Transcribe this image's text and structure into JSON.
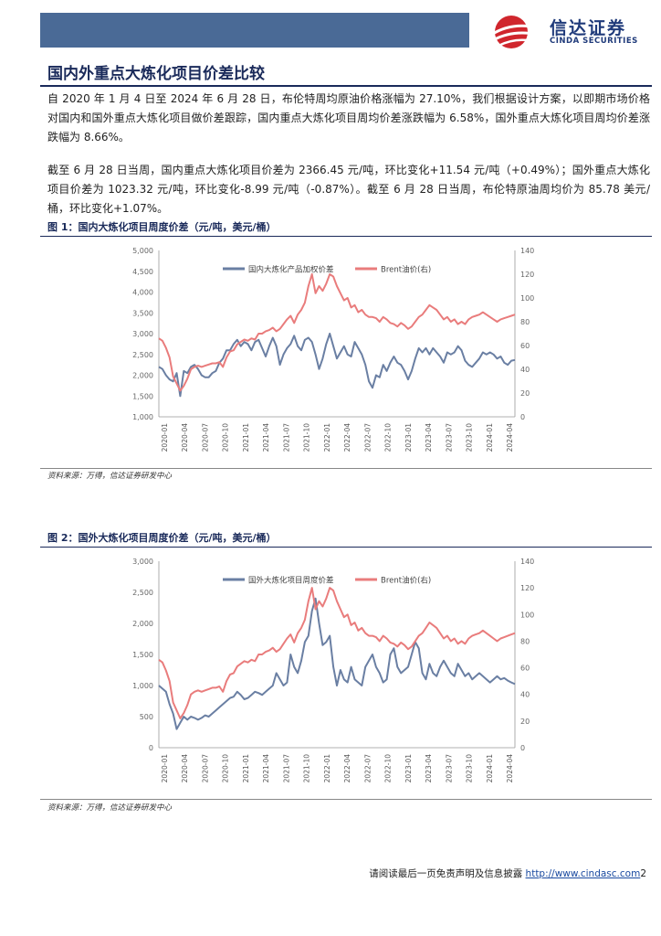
{
  "header": {
    "logo_cn": "信达证券",
    "logo_en": "CINDA SECURITIES",
    "band_color": "#4a6a96",
    "brand_color": "#1f3a7a",
    "logo_red": "#d0262d"
  },
  "section_title": "国内外重点大炼化项目价差比较",
  "paragraphs": [
    "自 2020 年 1 月 4 日至 2024 年 6 月 28 日，布伦特周均原油价格涨幅为 27.10%，我们根据设计方案，以即期市场价格对国内和国外重点大炼化项目做价差跟踪，国内重点大炼化项目周均价差涨跌幅为 6.58%，国外重点大炼化项目周均价差涨跌幅为 8.66%。",
    "截至 6 月 28 日当周，国内重点大炼化项目价差为 2366.45 元/吨，环比变化+11.54 元/吨（+0.49%）；国外重点大炼化项目价差为 1023.32 元/吨，环比变化-8.99 元/吨（-0.87%）。截至 6 月 28 日当周，布伦特原油周均价为 85.78 美元/桶，环比变化+1.07%。"
  ],
  "figures": [
    {
      "title": "图 1：国内大炼化项目周度价差（元/吨，美元/桶）",
      "source": "资料来源：万得，信达证券研发中心"
    },
    {
      "title": "图 2：国外大炼化项目周度价差（元/吨，美元/桶）",
      "source": "资料来源：万得，信达证券研发中心"
    }
  ],
  "footer": {
    "text": "请阅读最后一页免责声明及信息披露",
    "link": "http://www.cindasc.com",
    "page": "2"
  },
  "chart_data": [
    {
      "type": "line",
      "title": "",
      "legend_position": "top",
      "y_left": {
        "min": 1000,
        "max": 5000,
        "ticks": [
          "1,000",
          "1,500",
          "2,000",
          "2,500",
          "3,000",
          "3,500",
          "4,000",
          "4,500",
          "5,000"
        ]
      },
      "y_right": {
        "min": 0,
        "max": 140,
        "ticks": [
          "0",
          "20",
          "40",
          "60",
          "80",
          "100",
          "120",
          "140"
        ]
      },
      "x_tick_labels": [
        "2020-01",
        "2020-04",
        "2020-07",
        "2020-10",
        "2021-01",
        "2021-04",
        "2021-07",
        "2021-10",
        "2022-01",
        "2022-04",
        "2022-07",
        "2022-10",
        "2023-01",
        "2023-04",
        "2023-07",
        "2023-10",
        "2024-01",
        "2024-04"
      ],
      "series": [
        {
          "name": "国内大炼化产品加权价差",
          "axis": "left",
          "color": "#6a7fa3",
          "values": [
            2200,
            2150,
            2000,
            1900,
            1850,
            2050,
            1500,
            2100,
            2050,
            2200,
            2250,
            2150,
            2000,
            1950,
            1950,
            2050,
            2100,
            2300,
            2400,
            2600,
            2600,
            2750,
            2850,
            2700,
            2800,
            2750,
            2600,
            2800,
            2850,
            2650,
            2450,
            2700,
            2900,
            2700,
            2250,
            2500,
            2650,
            2750,
            2950,
            2700,
            2600,
            2850,
            2900,
            2800,
            2500,
            2150,
            2400,
            2750,
            3000,
            2700,
            2400,
            2550,
            2700,
            2500,
            2450,
            2800,
            2650,
            2500,
            2250,
            1850,
            1700,
            2000,
            1950,
            2250,
            2100,
            2300,
            2450,
            2300,
            2250,
            2100,
            1900,
            2100,
            2400,
            2650,
            2550,
            2650,
            2500,
            2650,
            2550,
            2450,
            2300,
            2550,
            2500,
            2550,
            2700,
            2600,
            2350,
            2250,
            2200,
            2300,
            2400,
            2550,
            2500,
            2550,
            2500,
            2400,
            2450,
            2300,
            2250,
            2350,
            2366
          ]
        },
        {
          "name": "Brent油价(右)",
          "axis": "right",
          "color": "#e97c7c",
          "values": [
            66,
            64,
            58,
            50,
            34,
            28,
            22,
            26,
            32,
            40,
            42,
            43,
            42,
            43,
            44,
            45,
            45,
            46,
            42,
            50,
            55,
            56,
            61,
            63,
            65,
            64,
            66,
            65,
            70,
            70,
            72,
            73,
            75,
            72,
            74,
            78,
            82,
            85,
            79,
            86,
            90,
            96,
            110,
            120,
            104,
            110,
            106,
            112,
            120,
            118,
            110,
            104,
            98,
            100,
            92,
            94,
            88,
            90,
            86,
            84,
            84,
            83,
            80,
            84,
            82,
            79,
            78,
            76,
            79,
            77,
            74,
            76,
            80,
            84,
            86,
            90,
            94,
            92,
            90,
            86,
            82,
            84,
            80,
            82,
            78,
            80,
            78,
            82,
            84,
            85,
            86,
            88,
            86,
            84,
            82,
            80,
            82,
            83,
            84,
            85,
            86
          ]
        }
      ]
    },
    {
      "type": "line",
      "title": "",
      "legend_position": "top",
      "y_left": {
        "min": 0,
        "max": 3000,
        "ticks": [
          "0",
          "500",
          "1,000",
          "1,500",
          "2,000",
          "2,500",
          "3,000"
        ]
      },
      "y_right": {
        "min": 0,
        "max": 140,
        "ticks": [
          "0",
          "20",
          "40",
          "60",
          "80",
          "100",
          "120",
          "140"
        ]
      },
      "x_tick_labels": [
        "2020-01",
        "2020-04",
        "2020-07",
        "2020-10",
        "2021-01",
        "2021-04",
        "2021-07",
        "2021-10",
        "2022-01",
        "2022-04",
        "2022-07",
        "2022-10",
        "2023-01",
        "2023-04",
        "2023-07",
        "2023-10",
        "2024-01",
        "2024-04"
      ],
      "series": [
        {
          "name": "国外大炼化项目周度价差",
          "axis": "left",
          "color": "#6a7fa3",
          "values": [
            1000,
            950,
            900,
            700,
            550,
            300,
            400,
            500,
            450,
            500,
            480,
            450,
            480,
            520,
            500,
            550,
            600,
            650,
            700,
            750,
            800,
            820,
            900,
            850,
            780,
            800,
            850,
            900,
            880,
            850,
            900,
            950,
            1000,
            1200,
            1100,
            1000,
            1050,
            1500,
            1300,
            1200,
            1400,
            1700,
            1800,
            2200,
            2400,
            2000,
            1650,
            1700,
            1800,
            1300,
            1000,
            1250,
            1100,
            1050,
            1300,
            1100,
            1050,
            1000,
            1300,
            1400,
            1500,
            1300,
            1200,
            1050,
            1100,
            1500,
            1600,
            1300,
            1200,
            1250,
            1300,
            1500,
            1700,
            1600,
            1200,
            1100,
            1350,
            1200,
            1150,
            1300,
            1400,
            1300,
            1200,
            1150,
            1350,
            1250,
            1150,
            1200,
            1100,
            1150,
            1200,
            1150,
            1100,
            1050,
            1100,
            1150,
            1100,
            1120,
            1080,
            1050,
            1023
          ]
        },
        {
          "name": "Brent油价(右)",
          "axis": "right",
          "color": "#e97c7c",
          "values": [
            66,
            64,
            58,
            50,
            34,
            28,
            22,
            26,
            32,
            40,
            42,
            43,
            42,
            43,
            44,
            45,
            45,
            46,
            42,
            50,
            55,
            56,
            61,
            63,
            65,
            64,
            66,
            65,
            70,
            70,
            72,
            73,
            75,
            72,
            74,
            78,
            82,
            85,
            79,
            86,
            90,
            96,
            110,
            120,
            104,
            110,
            106,
            112,
            120,
            118,
            110,
            104,
            98,
            100,
            92,
            94,
            88,
            90,
            86,
            84,
            84,
            83,
            80,
            84,
            82,
            79,
            78,
            76,
            79,
            77,
            74,
            76,
            80,
            84,
            86,
            90,
            94,
            92,
            90,
            86,
            82,
            84,
            80,
            82,
            78,
            80,
            78,
            82,
            84,
            85,
            86,
            88,
            86,
            84,
            82,
            80,
            82,
            83,
            84,
            85,
            86
          ]
        }
      ]
    }
  ]
}
